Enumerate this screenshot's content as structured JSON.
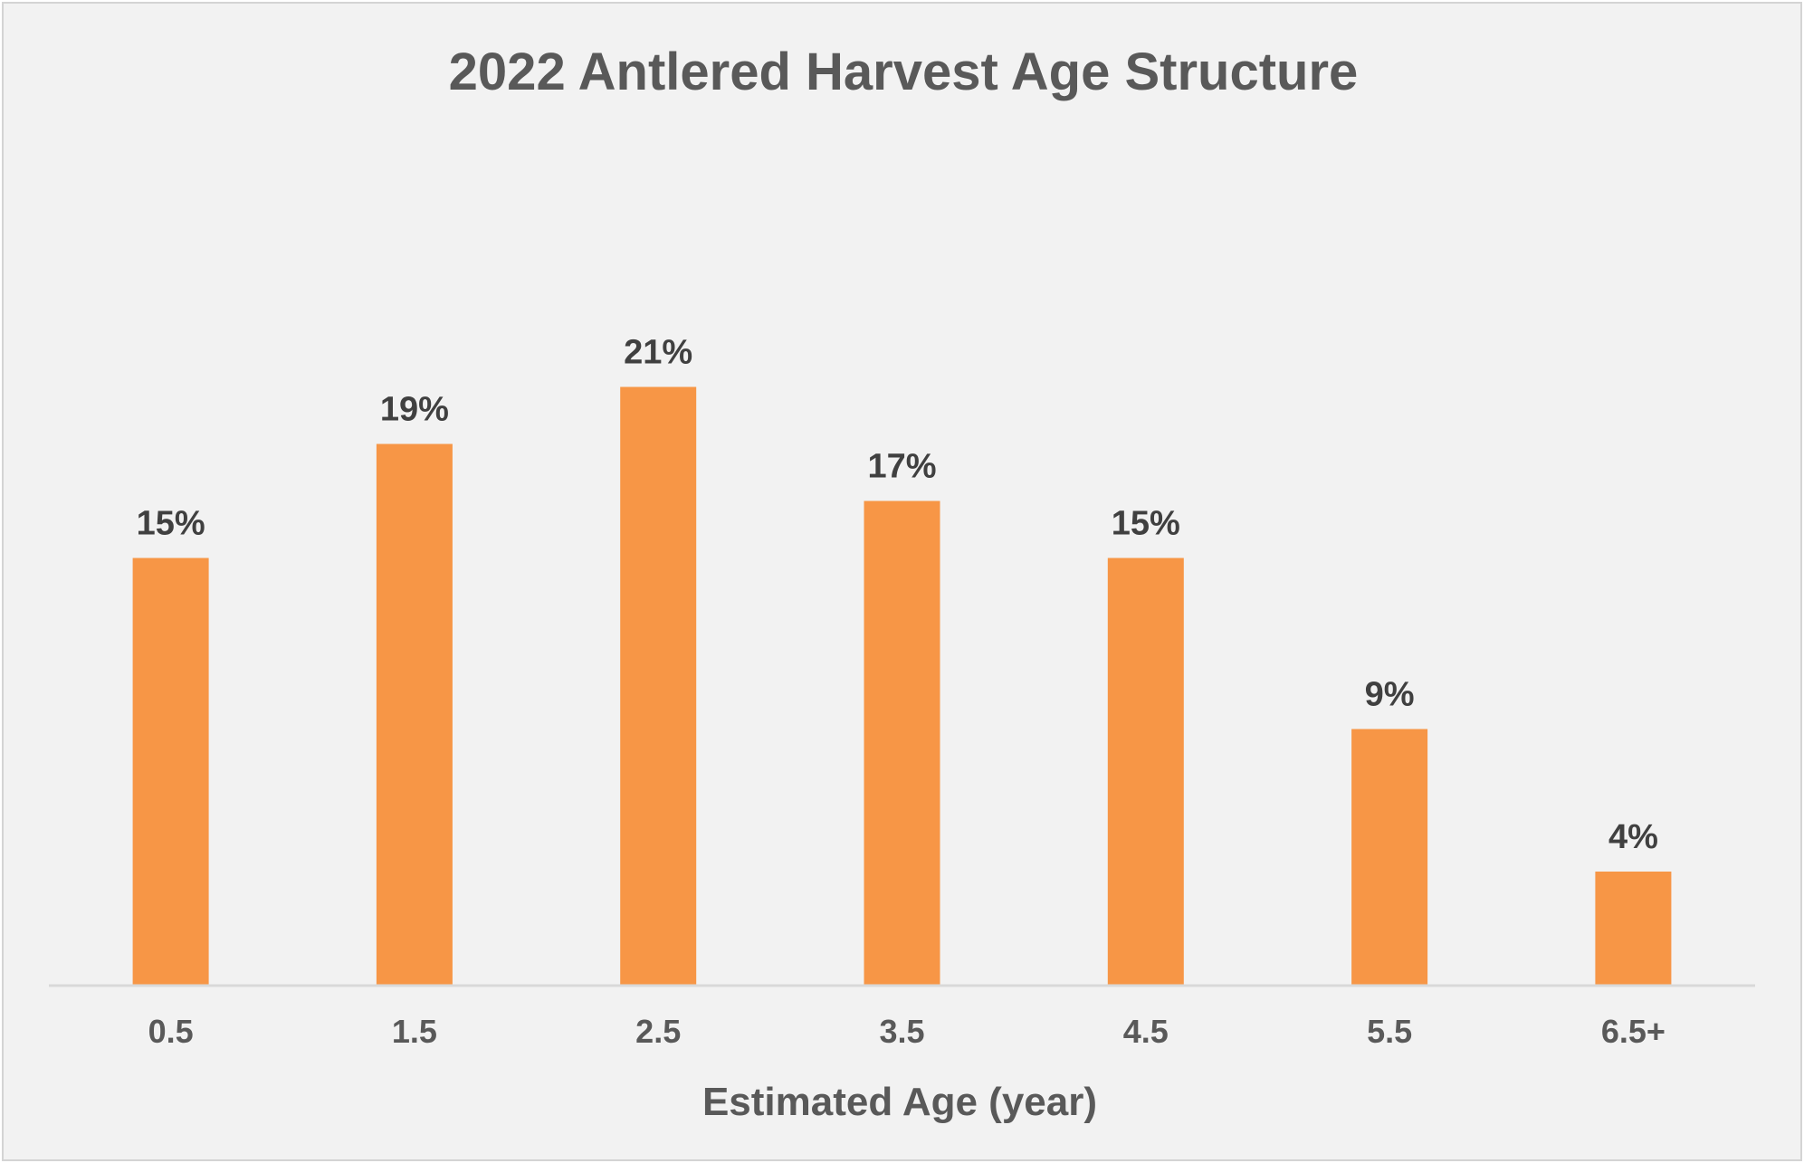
{
  "chart_data": {
    "type": "bar",
    "title": "2022 Antlered Harvest Age Structure",
    "xlabel": "Estimated Age (year)",
    "ylabel": "",
    "categories": [
      "0.5",
      "1.5",
      "2.5",
      "3.5",
      "4.5",
      "5.5",
      "6.5+"
    ],
    "values": [
      15,
      19,
      21,
      17,
      15,
      9,
      4
    ],
    "data_labels": [
      "15%",
      "19%",
      "21%",
      "17%",
      "15%",
      "9%",
      "4%"
    ],
    "ylim": [
      0,
      24
    ],
    "grid": false,
    "legend": "none",
    "bar_color": "#f79646",
    "axis_color": "#d9d9d9",
    "background_color": "#f2f2f2"
  }
}
